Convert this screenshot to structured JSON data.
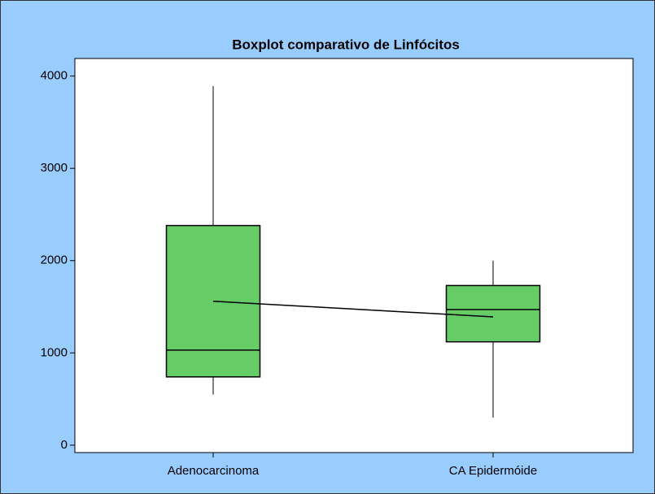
{
  "chart_data": {
    "type": "box",
    "title": "Boxplot comparativo de Linfócitos",
    "categories": [
      "Adenocarcinoma",
      "CA Epidermóide"
    ],
    "boxes": [
      {
        "min": 550,
        "q1": 740,
        "median": 1030,
        "q3": 2380,
        "max": 3890,
        "mean": 1560
      },
      {
        "min": 300,
        "q1": 1120,
        "median": 1470,
        "q3": 1730,
        "max": 2000,
        "mean": 1390
      }
    ],
    "color": "#66cc66",
    "background": "#99ccff",
    "ylim": [
      -80,
      4190
    ],
    "yticks": [
      0,
      1000,
      2000,
      3000,
      4000
    ],
    "connect_means": true
  }
}
